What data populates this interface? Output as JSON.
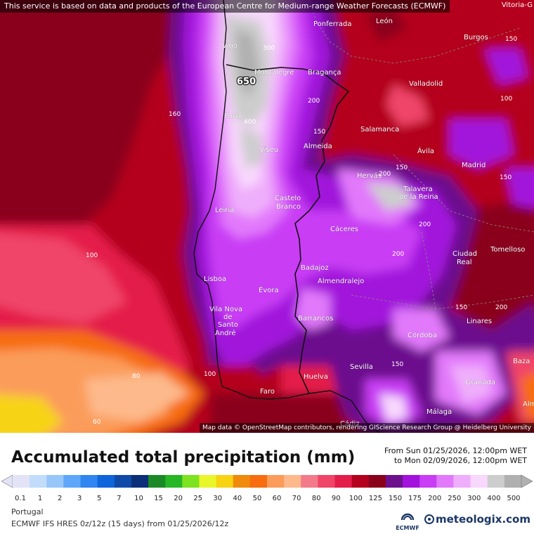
{
  "notice": "This service is based on data and products of the European Centre for Medium-range Weather Forecasts (ECMWF)",
  "attribution": "Map data © OpenStreetMap contributors, rendering GIScience Research Group @ Heidelberg University",
  "corner_label": "Vitoria-G",
  "peak_label": "650",
  "title": "Accumulated total precipitation (mm)",
  "period": {
    "from": "From Sun 01/25/2026, 12:00pm WET",
    "to": "to Mon 02/09/2026, 12:00pm WET"
  },
  "legend": {
    "levels": [
      "0.1",
      "1",
      "2",
      "3",
      "5",
      "7",
      "10",
      "15",
      "20",
      "25",
      "30",
      "40",
      "50",
      "60",
      "70",
      "80",
      "90",
      "100",
      "125",
      "150",
      "175",
      "200",
      "250",
      "300",
      "400",
      "500"
    ],
    "colors": [
      "#e3e3f6",
      "#c2dcfb",
      "#97c6fb",
      "#5ea7fb",
      "#2f86f0",
      "#0f65db",
      "#104aa8",
      "#0b2f78",
      "#1b8a26",
      "#27b624",
      "#7de21f",
      "#e9f62a",
      "#f7d312",
      "#f08a0a",
      "#f76d10",
      "#fb9c5a",
      "#fdb98b",
      "#f37a8a",
      "#f04569",
      "#e41c4a",
      "#b4001e",
      "#8a001a",
      "#6c108e",
      "#a212dc",
      "#c93df5",
      "#e279fb",
      "#efaefb",
      "#f8d8fd",
      "#cdcdcd",
      "#b0b0b0"
    ]
  },
  "region": "Portugal",
  "model": "ECMWF IFS HRES 0z/12z (15 days) from  01/25/2026/12z",
  "logo_text": "ECMWF",
  "brand": "meteologix.com",
  "cities": [
    {
      "name": "Vigo"
    },
    {
      "name": "Ponferrada"
    },
    {
      "name": "León"
    },
    {
      "name": "Burgos"
    },
    {
      "name": "Montalegre"
    },
    {
      "name": "Bragança"
    },
    {
      "name": "Valladolid"
    },
    {
      "name": "Porto"
    },
    {
      "name": "Salamanca"
    },
    {
      "name": "Viseu"
    },
    {
      "name": "Almeida"
    },
    {
      "name": "Ávila"
    },
    {
      "name": "Madrid"
    },
    {
      "name": "Hervás"
    },
    {
      "name": "Talavera"
    },
    {
      "name": "de la Reina"
    },
    {
      "name": "Castelo"
    },
    {
      "name": "Branco"
    },
    {
      "name": "Leiria"
    },
    {
      "name": "Cáceres"
    },
    {
      "name": "Ciudad"
    },
    {
      "name": "Real"
    },
    {
      "name": "Tomelloso"
    },
    {
      "name": "Badajoz"
    },
    {
      "name": "Lisboa"
    },
    {
      "name": "Almendralejo"
    },
    {
      "name": "Évora"
    },
    {
      "name": "Vila Nova"
    },
    {
      "name": "de"
    },
    {
      "name": "Santo"
    },
    {
      "name": "André"
    },
    {
      "name": "Barrancos"
    },
    {
      "name": "Linares"
    },
    {
      "name": "Córdoba"
    },
    {
      "name": "Baza"
    },
    {
      "name": "Sevilla"
    },
    {
      "name": "Huelva"
    },
    {
      "name": "Granada"
    },
    {
      "name": "Faro"
    },
    {
      "name": "Málaga"
    },
    {
      "name": "Cádiz"
    },
    {
      "name": "Alm"
    }
  ],
  "contour_labels": [
    {
      "text": "300"
    },
    {
      "text": "400"
    },
    {
      "text": "200"
    },
    {
      "text": "150"
    },
    {
      "text": "160"
    },
    {
      "text": "150"
    },
    {
      "text": "100"
    },
    {
      "text": "80"
    },
    {
      "text": "60"
    },
    {
      "text": "100"
    },
    {
      "text": "150"
    },
    {
      "text": "200"
    },
    {
      "text": "200"
    },
    {
      "text": "200"
    },
    {
      "text": "150"
    },
    {
      "text": "100"
    },
    {
      "text": "150"
    },
    {
      "text": "200"
    },
    {
      "text": "150"
    }
  ]
}
